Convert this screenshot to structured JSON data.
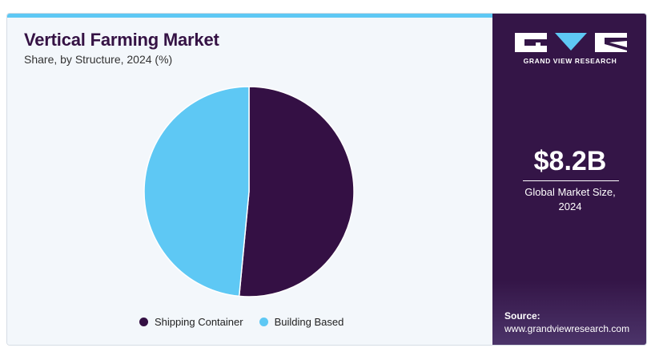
{
  "header": {
    "title": "Vertical Farming Market",
    "subtitle": "Share, by Structure, 2024 (%)"
  },
  "colors": {
    "accent": "#5ec8f4",
    "brand_dark": "#341547",
    "shipping_container": "#341044",
    "building_based": "#5ec8f4"
  },
  "chart_data": {
    "type": "pie",
    "title": "Vertical Farming Market",
    "subtitle": "Share, by Structure, 2024 (%)",
    "categories": [
      "Shipping Container",
      "Building Based"
    ],
    "values": [
      51.5,
      48.5
    ],
    "colors": [
      "#341044",
      "#5ec8f4"
    ],
    "start_angle": "12 o'clock, clockwise",
    "legend_position": "bottom"
  },
  "legend": {
    "items": [
      {
        "label": "Shipping Container",
        "color": "#341044"
      },
      {
        "label": "Building Based",
        "color": "#5ec8f4"
      }
    ]
  },
  "sidebar": {
    "brand": "GRAND VIEW RESEARCH",
    "market_size": "$8.2B",
    "market_size_label_line1": "Global Market Size,",
    "market_size_label_line2": "2024",
    "source_label": "Source:",
    "source_url": "www.grandviewresearch.com"
  }
}
